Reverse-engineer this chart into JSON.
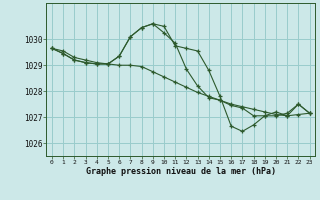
{
  "title": "Graphe pression niveau de la mer (hPa)",
  "background_color": "#cce8e8",
  "grid_color": "#99cccc",
  "line_color": "#2d5a2d",
  "marker_color": "#2d5a2d",
  "xlim": [
    -0.5,
    23.5
  ],
  "ylim": [
    1025.5,
    1031.4
  ],
  "yticks": [
    1026,
    1027,
    1028,
    1029,
    1030
  ],
  "xticks": [
    0,
    1,
    2,
    3,
    4,
    5,
    6,
    7,
    8,
    9,
    10,
    11,
    12,
    13,
    14,
    15,
    16,
    17,
    18,
    19,
    20,
    21,
    22,
    23
  ],
  "series1": [
    1029.65,
    1029.55,
    1029.3,
    1029.2,
    1029.1,
    1029.05,
    1029.0,
    1029.0,
    1028.95,
    1028.75,
    1028.55,
    1028.35,
    1028.15,
    1027.95,
    1027.8,
    1027.65,
    1027.5,
    1027.4,
    1027.3,
    1027.2,
    1027.1,
    1027.05,
    1027.1,
    1027.15
  ],
  "series2": [
    1029.65,
    1029.45,
    1029.2,
    1029.1,
    1029.05,
    1029.05,
    1029.35,
    1030.1,
    1030.45,
    1030.6,
    1030.5,
    1029.75,
    1029.65,
    1029.55,
    1028.8,
    1027.8,
    1026.65,
    1026.45,
    1026.7,
    1027.05,
    1027.05,
    1027.15,
    1027.5,
    1027.15
  ],
  "series3": [
    1029.65,
    1029.45,
    1029.2,
    1029.1,
    1029.05,
    1029.05,
    1029.35,
    1030.1,
    1030.45,
    1030.6,
    1030.25,
    1029.85,
    1028.85,
    1028.2,
    1027.75,
    1027.65,
    1027.45,
    1027.35,
    1027.05,
    1027.05,
    1027.2,
    1027.05,
    1027.5,
    1027.15
  ]
}
